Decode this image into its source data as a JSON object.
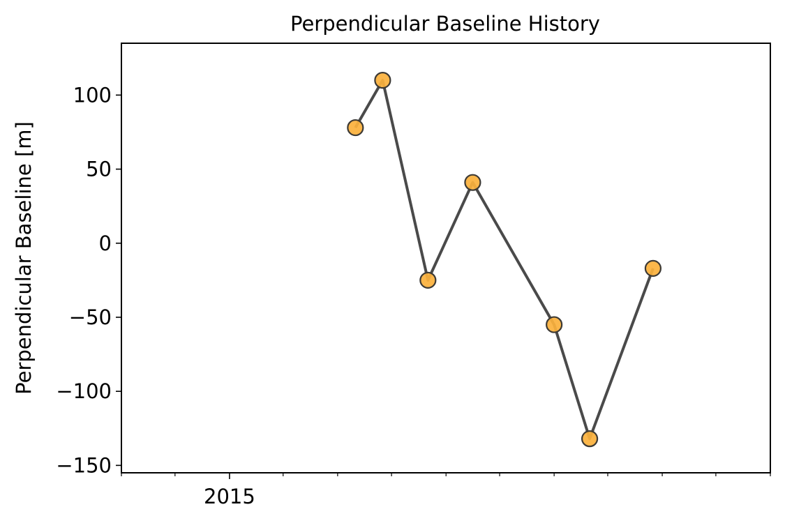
{
  "chart_data": {
    "type": "line",
    "title": "Perpendicular Baseline History",
    "xlabel": "",
    "ylabel": "Perpendicular Baseline [m]",
    "x_tick_labels": [
      "2015"
    ],
    "y_ticks": [
      100,
      50,
      0,
      -50,
      -100,
      -150
    ],
    "y_tick_labels": [
      "100",
      "50",
      "0",
      "−50",
      "−100",
      "−150"
    ],
    "ylim": [
      -155,
      135
    ],
    "xlim": [
      "2014-01-01",
      "2020-01-01"
    ],
    "x_major_ticks": [
      "2015-01-01"
    ],
    "x_minor_ticks": [
      "2014-01-01",
      "2014-07-01",
      "2015-07-01",
      "2016-01-01",
      "2016-07-01",
      "2017-01-01",
      "2017-07-01",
      "2018-01-01",
      "2018-07-01",
      "2019-01-01",
      "2019-07-01",
      "2020-01-01"
    ],
    "grid": false,
    "series": [
      {
        "x": [
          "2016-03-01",
          "2016-06-01",
          "2016-11-01",
          "2017-04-01",
          "2018-01-01",
          "2018-05-01",
          "2018-12-01"
        ],
        "y": [
          78,
          110,
          -25,
          41,
          -55,
          -132,
          -17
        ],
        "line_color": "#4a4a4a",
        "marker_color": "#fbb13c",
        "marker_edge_color": "#3d3a35"
      }
    ]
  }
}
